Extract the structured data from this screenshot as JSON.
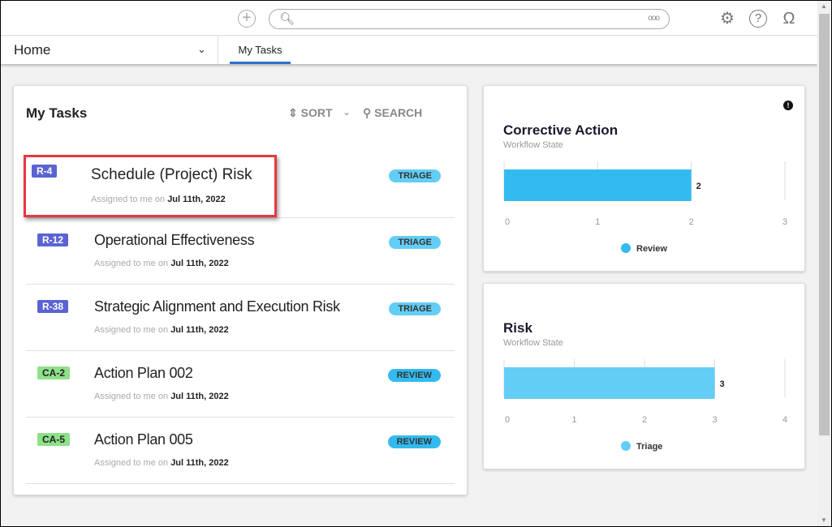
{
  "topbar": {
    "add_icon": "plus-circle-icon",
    "search_placeholder": "",
    "search_icon": "search-icon",
    "more_icon": "ellipsis-icon",
    "settings_icon": "gear-icon",
    "help_icon": "question-icon",
    "user_icon": "user-icon"
  },
  "nav": {
    "home_label": "Home",
    "tabs": [
      {
        "label": "My Tasks",
        "active": true
      }
    ]
  },
  "tasks": {
    "title": "My Tasks",
    "sort_label": "SORT",
    "search_label": "SEARCH",
    "assigned_prefix": "Assigned to me on",
    "items": [
      {
        "id": "R-4",
        "title": "Schedule (Project) Risk",
        "date": "Jul 11th, 2022",
        "state": "TRIAGE",
        "id_color": "#5b63d3",
        "state_color": "#63cdf5",
        "highlighted": true
      },
      {
        "id": "R-12",
        "title": "Operational Effectiveness",
        "date": "Jul 11th, 2022",
        "state": "TRIAGE",
        "id_color": "#5b63d3",
        "state_color": "#63cdf5"
      },
      {
        "id": "R-38",
        "title": "Strategic Alignment and Execution Risk",
        "date": "Jul 11th, 2022",
        "state": "TRIAGE",
        "id_color": "#5b63d3",
        "state_color": "#63cdf5"
      },
      {
        "id": "CA-2",
        "title": "Action Plan 002",
        "date": "Jul 11th, 2022",
        "state": "REVIEW",
        "id_color": "#8fe08a",
        "state_color": "#33bbf0"
      },
      {
        "id": "CA-5",
        "title": "Action Plan 005",
        "date": "Jul 11th, 2022",
        "state": "REVIEW",
        "id_color": "#8fe08a",
        "state_color": "#33bbf0"
      }
    ]
  },
  "widgets": [
    {
      "title": "Corrective Action",
      "subtitle": "Workflow State",
      "type": "bar",
      "orientation": "horizontal",
      "xlim": [
        0,
        3
      ],
      "ticks": [
        "0",
        "1",
        "2",
        "3"
      ],
      "series": [
        {
          "name": "Review",
          "value": 2,
          "color": "#33bbf0"
        }
      ]
    },
    {
      "title": "Risk",
      "subtitle": "Workflow State",
      "type": "bar",
      "orientation": "horizontal",
      "xlim": [
        0,
        4
      ],
      "ticks": [
        "0",
        "1",
        "2",
        "3",
        "4"
      ],
      "series": [
        {
          "name": "Triage",
          "value": 3,
          "color": "#63cdf5"
        }
      ]
    }
  ]
}
